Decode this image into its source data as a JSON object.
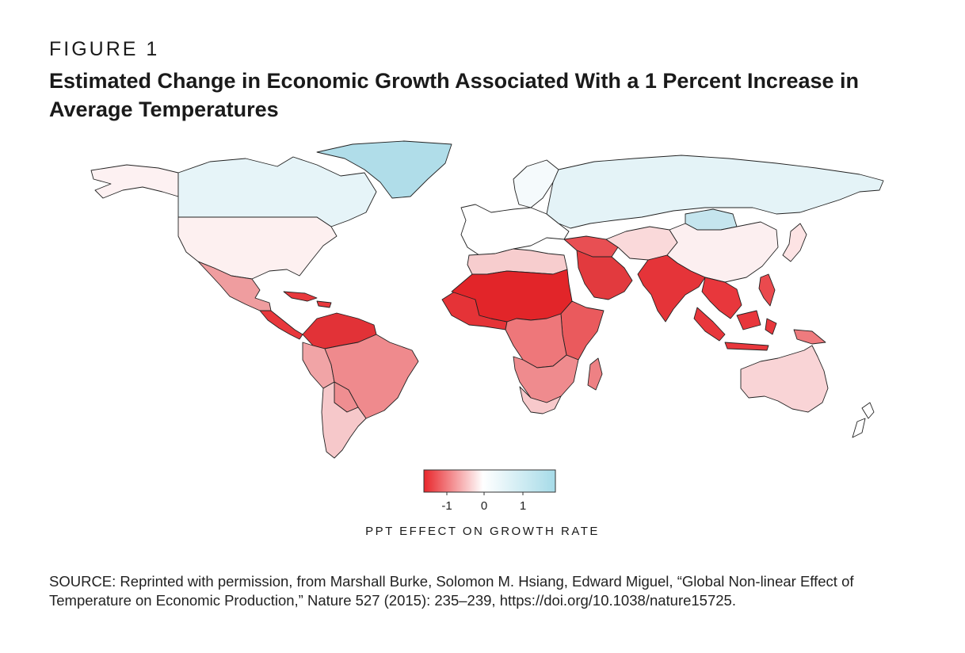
{
  "figure": {
    "label": "FIGURE 1",
    "title": "Estimated Change in Economic Growth Associated With a 1 Percent Increase in Average Temperatures"
  },
  "legend": {
    "ticks": [
      "-1",
      "0",
      "1"
    ],
    "caption": "PPT EFFECT ON GROWTH RATE",
    "colors": {
      "neg": "#e8262b",
      "zero": "#ffffff",
      "pos": "#a6dbe8"
    }
  },
  "regions": [
    {
      "name": "canada",
      "color": "#e6f4f8"
    },
    {
      "name": "alaska",
      "color": "#fdf1f2"
    },
    {
      "name": "greenland",
      "color": "#b0dde9"
    },
    {
      "name": "usa",
      "color": "#fdf0f0"
    },
    {
      "name": "mexico",
      "color": "#ef9d9f"
    },
    {
      "name": "central-america",
      "color": "#e8383c"
    },
    {
      "name": "caribbean",
      "color": "#e8383c"
    },
    {
      "name": "colombia-venezuela",
      "color": "#e23237"
    },
    {
      "name": "brazil",
      "color": "#ef8a8d"
    },
    {
      "name": "peru",
      "color": "#f1a4a6"
    },
    {
      "name": "bolivia",
      "color": "#ef8e91"
    },
    {
      "name": "argentina-chile",
      "color": "#f6c8ca"
    },
    {
      "name": "russia",
      "color": "#e4f3f7"
    },
    {
      "name": "mongolia",
      "color": "#c5e5ee"
    },
    {
      "name": "europe",
      "color": "#ffffff"
    },
    {
      "name": "scandinavia",
      "color": "#f5fafc"
    },
    {
      "name": "china",
      "color": "#fceff0"
    },
    {
      "name": "middle-east",
      "color": "#e84f53"
    },
    {
      "name": "arabia",
      "color": "#e23a3e"
    },
    {
      "name": "iran",
      "color": "#fad9da"
    },
    {
      "name": "india",
      "color": "#e53439"
    },
    {
      "name": "southeast-asia",
      "color": "#e8373c"
    },
    {
      "name": "indonesia",
      "color": "#e8373c"
    },
    {
      "name": "philippines",
      "color": "#ea4a4e"
    },
    {
      "name": "north-africa",
      "color": "#f7cdce"
    },
    {
      "name": "sahel",
      "color": "#e22529"
    },
    {
      "name": "west-africa",
      "color": "#e53337"
    },
    {
      "name": "central-africa",
      "color": "#ee777a"
    },
    {
      "name": "east-africa",
      "color": "#ea5a5d"
    },
    {
      "name": "southern-africa",
      "color": "#ef8b8e"
    },
    {
      "name": "south-africa",
      "color": "#f7c9cb"
    },
    {
      "name": "madagascar",
      "color": "#ee8184"
    },
    {
      "name": "australia",
      "color": "#f9d4d6"
    },
    {
      "name": "new-zealand",
      "color": "#ffffff"
    },
    {
      "name": "japan",
      "color": "#fde3e4"
    },
    {
      "name": "png",
      "color": "#ee7b7e"
    }
  ],
  "source": {
    "text": "SOURCE: Reprinted with permission, from Marshall Burke, Solomon M. Hsiang, Edward Miguel, “Global Non-linear Effect of Temperature on Economic Production,” Nature 527 (2015): 235–239, https://doi.org/10.1038/nature15725."
  }
}
